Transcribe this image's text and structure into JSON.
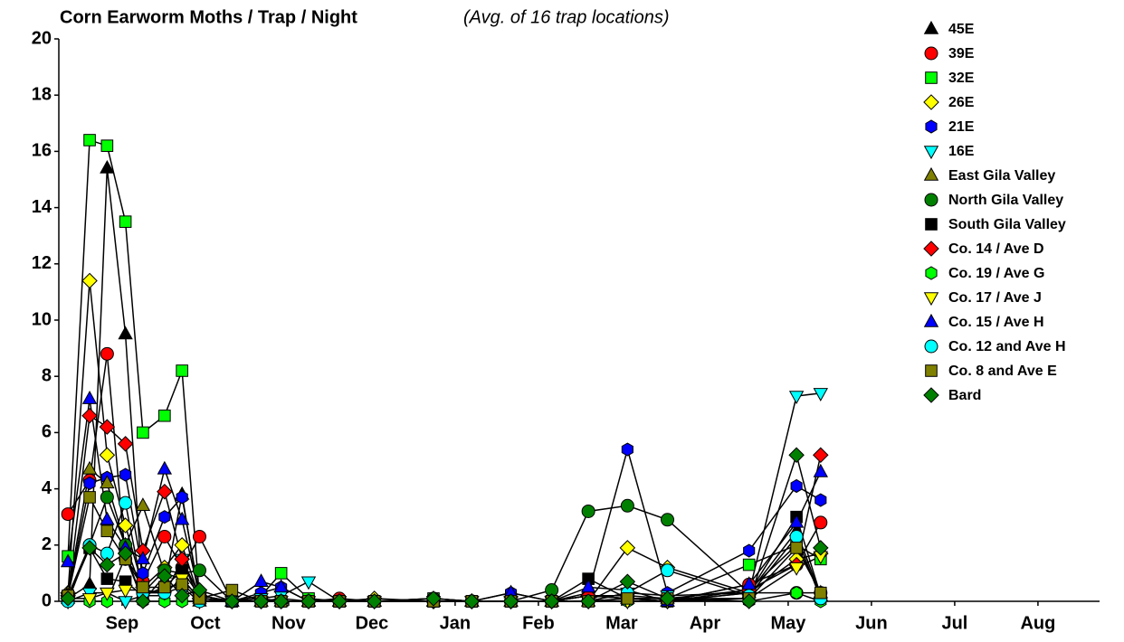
{
  "chart_data": {
    "type": "line",
    "title": "Corn Earworm Moths / Trap / Night",
    "subtitle": "(Avg. of 16 trap locations)",
    "x": [
      -0.15,
      0.11,
      0.32,
      0.54,
      0.75,
      1.01,
      1.22,
      1.43,
      1.82,
      2.17,
      2.41,
      2.74,
      3.11,
      3.53,
      4.24,
      4.7,
      5.17,
      5.66,
      6.1,
      6.57,
      7.05,
      8.03,
      8.6,
      8.89
    ],
    "xlim": [
      -0.26,
      12.24
    ],
    "xticks": [
      {
        "value": 0.5,
        "label": "Sep"
      },
      {
        "value": 1.5,
        "label": "Oct"
      },
      {
        "value": 2.5,
        "label": "Nov"
      },
      {
        "value": 3.5,
        "label": "Dec"
      },
      {
        "value": 4.5,
        "label": "Jan"
      },
      {
        "value": 5.5,
        "label": "Feb"
      },
      {
        "value": 6.5,
        "label": "Mar"
      },
      {
        "value": 7.5,
        "label": "Apr"
      },
      {
        "value": 8.5,
        "label": "May"
      },
      {
        "value": 9.5,
        "label": "Jun"
      },
      {
        "value": 10.5,
        "label": "Jul"
      },
      {
        "value": 11.5,
        "label": "Aug"
      }
    ],
    "ylim": [
      0,
      20
    ],
    "yticks": [
      0,
      2,
      4,
      6,
      8,
      10,
      12,
      14,
      16,
      18,
      20
    ],
    "grid": false,
    "legend": "top-right",
    "series": [
      {
        "name": "45E",
        "color": "#000000",
        "marker": "triangle-up",
        "values": [
          0.1,
          0.6,
          15.4,
          9.5,
          0.2,
          0.5,
          3.8,
          0,
          0,
          0,
          0.1,
          0,
          0,
          0,
          0,
          0,
          0,
          0,
          0.2,
          0.1,
          0,
          0.3,
          2.5,
          0.2
        ]
      },
      {
        "name": "39E",
        "color": "#ff0000",
        "marker": "circle",
        "values": [
          3.1,
          4.3,
          8.8,
          1.5,
          0.7,
          2.3,
          1.2,
          2.3,
          0,
          0.1,
          0,
          0,
          0.1,
          0,
          0,
          0,
          0,
          0,
          0.2,
          0.1,
          0,
          0.6,
          1.3,
          2.8
        ]
      },
      {
        "name": "32E",
        "color": "#00ff00",
        "marker": "square",
        "values": [
          1.6,
          16.4,
          16.2,
          13.5,
          6.0,
          6.6,
          8.2,
          0.1,
          0,
          0.2,
          1.0,
          0.1,
          0,
          0,
          0.1,
          0,
          0,
          0,
          0.2,
          0.2,
          0.1,
          1.3,
          2.0,
          1.5
        ]
      },
      {
        "name": "26E",
        "color": "#ffff00",
        "marker": "diamond",
        "values": [
          0.3,
          11.4,
          5.2,
          2.7,
          0.5,
          1.2,
          2.0,
          0.1,
          0,
          0,
          0,
          0,
          0,
          0.1,
          0,
          0,
          0,
          0,
          0,
          1.9,
          1.2,
          0.3,
          1.5,
          1.7
        ]
      },
      {
        "name": "21E",
        "color": "#0000ff",
        "marker": "hexagon",
        "values": [
          0.2,
          4.2,
          4.4,
          4.5,
          1.0,
          3.0,
          3.7,
          0.2,
          0,
          0.3,
          0.5,
          0,
          0,
          0,
          0,
          0,
          0.3,
          0,
          0.3,
          5.4,
          0.3,
          1.8,
          4.1,
          3.6
        ]
      },
      {
        "name": "16E",
        "color": "#00ffff",
        "marker": "triangle-down",
        "values": [
          0,
          0.3,
          0.3,
          0,
          0.2,
          0.2,
          1.5,
          0,
          0,
          0.1,
          0.2,
          0.7,
          0,
          0,
          0,
          0,
          0,
          0,
          0,
          0.3,
          0.2,
          0.3,
          7.3,
          7.4
        ]
      },
      {
        "name": "East Gila Valley",
        "color": "#808000",
        "marker": "triangle-up",
        "values": [
          0.3,
          4.7,
          4.2,
          2.0,
          3.4,
          1.0,
          0.8,
          0.1,
          0,
          0,
          0,
          0,
          0,
          0,
          0,
          0,
          0,
          0,
          0,
          0.1,
          0.1,
          0.4,
          2.0,
          0.3
        ]
      },
      {
        "name": "North Gila Valley",
        "color": "#008000",
        "marker": "circle",
        "values": [
          0.2,
          2.0,
          3.7,
          2.0,
          0.3,
          1.1,
          1.0,
          1.1,
          0,
          0,
          0,
          0,
          0,
          0,
          0.1,
          0,
          0,
          0.4,
          3.2,
          3.4,
          2.9,
          0.3,
          0.3,
          0.3
        ]
      },
      {
        "name": "South Gila Valley",
        "color": "#000000",
        "marker": "square",
        "values": [
          0.2,
          1.9,
          0.8,
          0.7,
          0.2,
          0.5,
          1.1,
          0.2,
          0,
          0,
          0,
          0,
          0,
          0,
          0,
          0,
          0,
          0,
          0.8,
          0.1,
          0,
          0.3,
          3.0,
          0.2
        ]
      },
      {
        "name": "Co. 14 / Ave D",
        "color": "#ff0000",
        "marker": "diamond",
        "values": [
          0.2,
          6.6,
          6.2,
          5.6,
          1.8,
          3.9,
          1.5,
          0.2,
          0,
          0,
          0,
          0,
          0,
          0,
          0,
          0,
          0,
          0,
          0.2,
          0.1,
          0,
          0.4,
          1.3,
          5.2
        ]
      },
      {
        "name": "Co. 19 / Ave G",
        "color": "#00ff00",
        "marker": "hexagon",
        "values": [
          0,
          0,
          0,
          1.6,
          0,
          0,
          0,
          0,
          0,
          0,
          0,
          0,
          0,
          0,
          0,
          0,
          0,
          0,
          0,
          0,
          0,
          0,
          0.3,
          0
        ]
      },
      {
        "name": "Co. 17 / Ave J",
        "color": "#ffff00",
        "marker": "triangle-down",
        "values": [
          0.1,
          0.1,
          0.3,
          0.4,
          0.4,
          0.3,
          0.8,
          0.1,
          0,
          0,
          0,
          0,
          0,
          0,
          0,
          0,
          0,
          0,
          0,
          0,
          0,
          0.1,
          1.2,
          1.6
        ]
      },
      {
        "name": "Co. 15 / Ave H",
        "color": "#0000ff",
        "marker": "triangle-up",
        "values": [
          1.4,
          7.2,
          2.9,
          1.9,
          1.5,
          4.7,
          2.9,
          0.2,
          0,
          0.7,
          0.5,
          0,
          0,
          0,
          0,
          0,
          0.3,
          0,
          0.5,
          0.4,
          0,
          0.6,
          2.8,
          4.6
        ]
      },
      {
        "name": "Co. 12 and Ave H",
        "color": "#00ffff",
        "marker": "circle",
        "values": [
          0,
          2.0,
          1.7,
          3.5,
          0.3,
          0.3,
          0.5,
          0,
          0,
          0,
          0,
          0,
          0,
          0,
          0,
          0,
          0,
          0,
          0,
          0.3,
          1.1,
          0.2,
          2.3,
          0.1
        ]
      },
      {
        "name": "Co. 8 and Ave E",
        "color": "#808000",
        "marker": "square",
        "values": [
          0.2,
          3.7,
          2.5,
          1.5,
          0.5,
          0.5,
          0.6,
          0.1,
          0.4,
          0,
          0,
          0,
          0,
          0,
          0,
          0,
          0,
          0,
          0,
          0.1,
          0.1,
          0.1,
          1.9,
          0.3
        ]
      },
      {
        "name": "Bard",
        "color": "#008000",
        "marker": "diamond",
        "values": [
          0.1,
          1.9,
          1.3,
          1.7,
          0,
          0.9,
          0.2,
          0.4,
          0,
          0,
          0,
          0,
          0,
          0,
          0.1,
          0,
          0,
          0,
          0,
          0.7,
          0.1,
          0,
          5.2,
          1.9
        ]
      }
    ]
  }
}
